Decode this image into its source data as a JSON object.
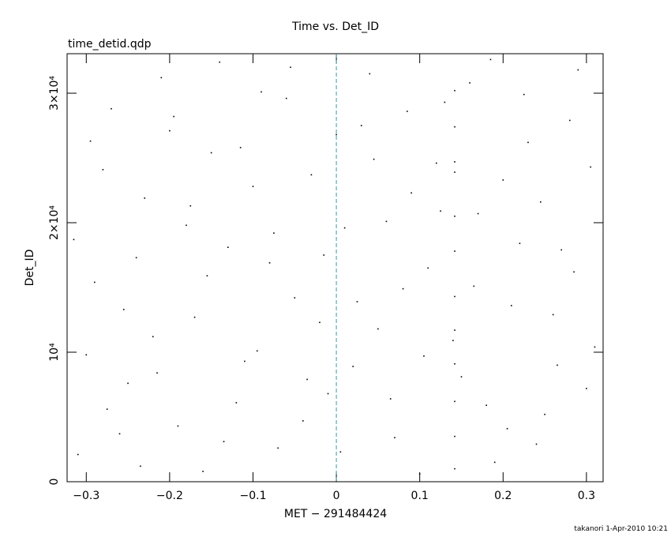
{
  "chart_data": {
    "type": "scatter",
    "title": "Time vs. Det_ID",
    "subtitle": "time_detid.qdp",
    "x_label": "MET − 291484424",
    "y_label": "Det_ID",
    "annotation": "takanori  1-Apr-2010 10:21",
    "color": "#000000",
    "reference_line": {
      "x": 0,
      "color": "#3a9aa8"
    },
    "xlim": [
      -0.323,
      0.32
    ],
    "ylim": [
      0,
      33050
    ],
    "xticks": [
      {
        "value": -0.3,
        "label": "−0.3"
      },
      {
        "value": -0.2,
        "label": "−0.2"
      },
      {
        "value": -0.1,
        "label": "−0.1"
      },
      0,
      0.1,
      0.2,
      0.3
    ],
    "yticks": [
      0,
      {
        "value": 10000,
        "label": "10⁴"
      },
      {
        "value": 20000,
        "label": "2×10⁴"
      },
      {
        "value": 30000,
        "label": "3×10⁴"
      }
    ],
    "series": [
      {
        "name": "events",
        "color": "#000000",
        "x": [
          -0.31,
          -0.29,
          -0.27,
          -0.25,
          -0.23,
          -0.21,
          -0.19,
          -0.17,
          -0.15,
          -0.13,
          -0.11,
          -0.09,
          -0.07,
          -0.05,
          -0.03,
          -0.01,
          0.01,
          0.03,
          0.05,
          0.07,
          0.09,
          0.11,
          0.13,
          0.15,
          0.17,
          0.19,
          0.21,
          0.23,
          0.25,
          0.27,
          0.29,
          0.31,
          -0.3,
          -0.28,
          -0.26,
          -0.24,
          -0.22,
          -0.2,
          -0.18,
          -0.16,
          -0.14,
          -0.12,
          -0.1,
          -0.08,
          -0.06,
          -0.04,
          -0.02,
          0.0,
          0.02,
          0.04,
          0.06,
          0.08,
          0.1,
          0.12,
          0.14,
          0.16,
          0.18,
          0.2,
          0.22,
          0.24,
          0.26,
          0.28,
          0.3,
          -0.315,
          -0.295,
          -0.275,
          -0.255,
          -0.235,
          -0.215,
          -0.195,
          -0.175,
          -0.155,
          -0.135,
          -0.115,
          -0.095,
          -0.075,
          -0.055,
          -0.035,
          -0.015,
          0.005,
          0.025,
          0.045,
          0.065,
          0.085,
          0.105,
          0.125,
          0.165,
          0.185,
          0.205,
          0.225,
          0.245,
          0.265,
          0.285,
          0.305,
          0.142,
          0.142,
          0.142,
          0.142,
          0.142,
          0.142,
          0.142,
          0.142,
          0.142,
          0.142,
          0.142,
          0.142
        ],
        "values": [
          2100,
          15400,
          28800,
          7600,
          21900,
          31200,
          4300,
          12700,
          25400,
          18100,
          9300,
          30100,
          2600,
          14200,
          23700,
          6800,
          19600,
          27500,
          11800,
          3400,
          22300,
          16500,
          29300,
          8100,
          20700,
          1500,
          13600,
          26200,
          5200,
          17900,
          31800,
          10400,
          9800,
          24100,
          3700,
          17300,
          11200,
          27100,
          19800,
          800,
          32400,
          6100,
          22800,
          16900,
          29600,
          4700,
          12300,
          26800,
          8900,
          31500,
          20100,
          14900,
          600,
          24600,
          10900,
          30800,
          5900,
          23300,
          18400,
          2900,
          12900,
          27900,
          7200,
          18700,
          26300,
          5600,
          13300,
          1200,
          8400,
          28200,
          21300,
          15900,
          3100,
          25800,
          10100,
          19200,
          32000,
          7900,
          17500,
          2300,
          13900,
          24900,
          6400,
          28600,
          9700,
          20900,
          15100,
          32600,
          4100,
          29900,
          21600,
          9000,
          16200,
          24300,
          1000,
          3500,
          6200,
          9100,
          11700,
          14300,
          17800,
          20500,
          23900,
          24700,
          27400,
          30200
        ]
      }
    ]
  }
}
